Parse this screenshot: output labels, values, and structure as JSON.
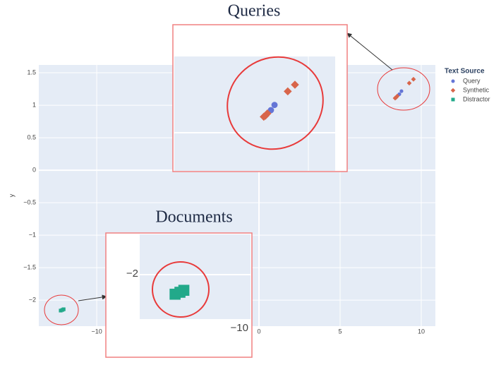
{
  "chart_data": {
    "type": "scatter",
    "xlim": [
      -13.57,
      10.87
    ],
    "ylim": [
      -2.4,
      1.62
    ],
    "xticks": [
      {
        "value": -10,
        "label": "−10"
      },
      0,
      5,
      10
    ],
    "yticks": [
      1.5,
      1,
      0.5,
      0,
      {
        "value": -0.5,
        "label": "−0.5"
      },
      {
        "value": -1,
        "label": "−1"
      },
      {
        "value": -1.5,
        "label": "−1.5"
      },
      {
        "value": -2,
        "label": "−2"
      }
    ],
    "ylabel": "y",
    "grid": true,
    "legend_title": "Text Source",
    "legend_position": "right",
    "series": [
      {
        "name": "Query",
        "marker": "circle",
        "color": "#6475d6",
        "x": [
          8.78,
          8.65
        ],
        "values": [
          1.217,
          1.17
        ]
      },
      {
        "name": "Synthetic",
        "marker": "diamond",
        "color": "#d8654a",
        "x": [
          9.26,
          9.52,
          8.52,
          8.39,
          8.45
        ],
        "values": [
          1.34,
          1.4,
          1.14,
          1.11,
          1.12
        ]
      },
      {
        "name": "Distractor",
        "marker": "square",
        "color": "#22a98a",
        "x": [
          -12.22,
          -12.04,
          -12.12
        ],
        "values": [
          -2.16,
          -2.14,
          -2.15
        ]
      }
    ],
    "insets": [
      {
        "title": "Queries"
      },
      {
        "title": "Documents",
        "tick_labels": [
          "−2",
          "−10"
        ]
      }
    ]
  }
}
